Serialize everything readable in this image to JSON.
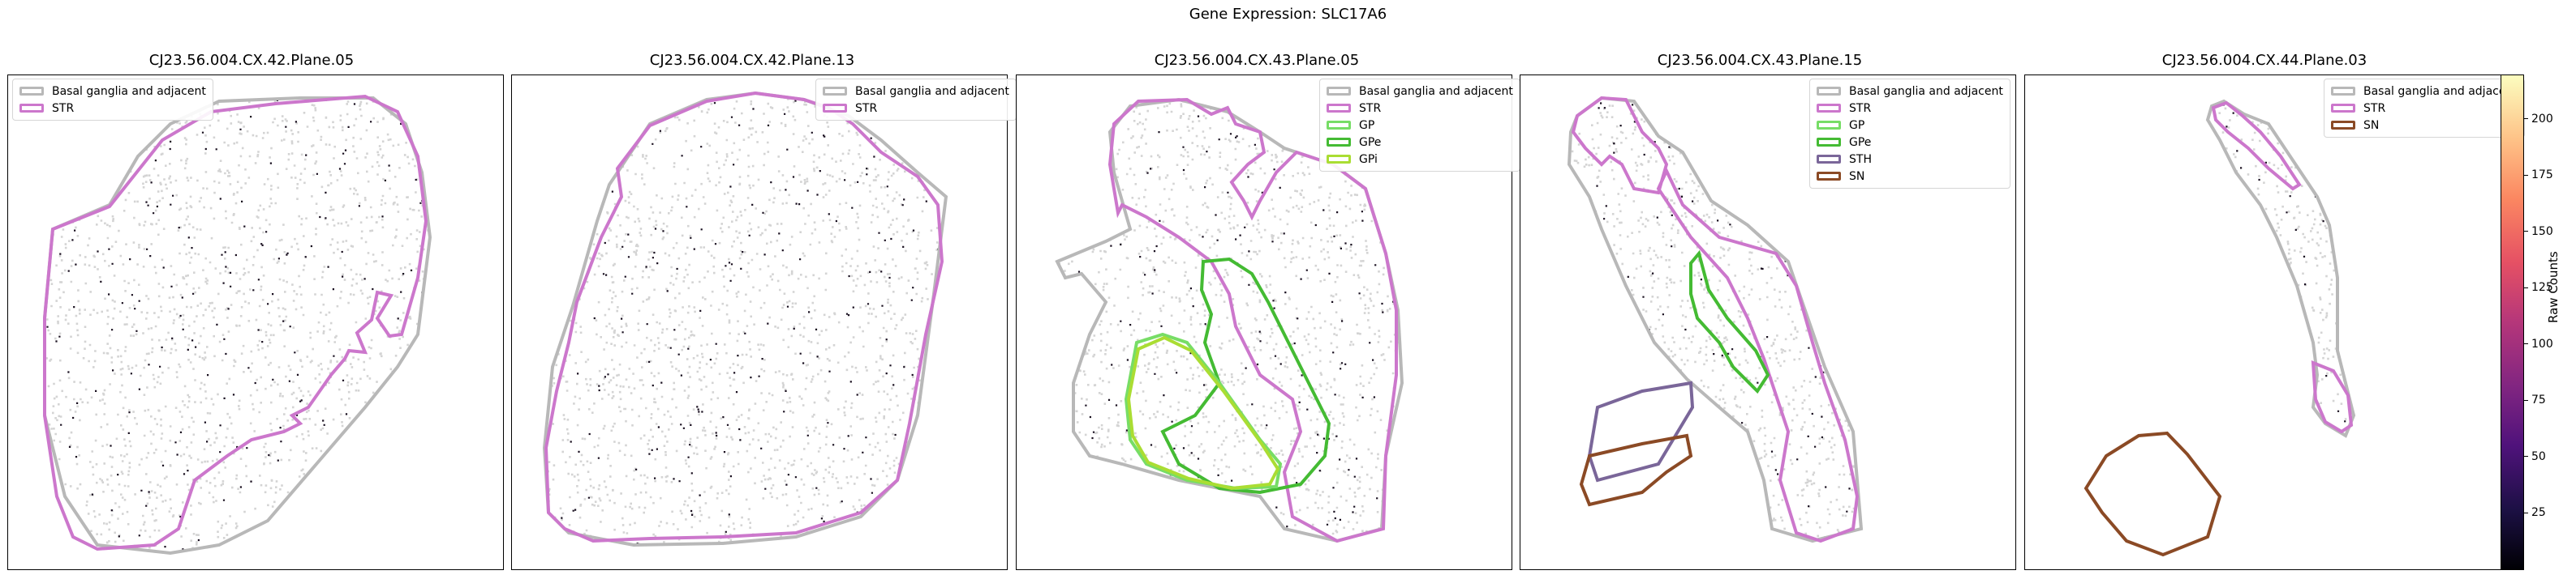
{
  "chart_data": {
    "type": "scatter",
    "title": "Gene Expression: SLC17A6",
    "colorbar": {
      "label": "Raw Counts",
      "ticks": [
        25,
        50,
        75,
        100,
        125,
        150,
        175,
        200
      ],
      "range": [
        0,
        220
      ],
      "colormap": "magma"
    },
    "region_colors": {
      "Basal ganglia and adjacent": "#b8b8b8",
      "STR": "#cc77cc",
      "GP": "#77dd66",
      "GPe": "#44bb33",
      "GPi": "#aadd33",
      "STH": "#7a6699",
      "SN": "#8b4a25"
    },
    "panels": [
      {
        "title": "CJ23.56.004.CX.42.Plane.05",
        "legend": [
          "Basal ganglia and adjacent",
          "STR"
        ],
        "legend_loc": "upper left"
      },
      {
        "title": "CJ23.56.004.CX.42.Plane.13",
        "legend": [
          "Basal ganglia and adjacent",
          "STR"
        ],
        "legend_loc": "upper right"
      },
      {
        "title": "CJ23.56.004.CX.43.Plane.05",
        "legend": [
          "Basal ganglia and adjacent",
          "STR",
          "GP",
          "GPe",
          "GPi"
        ],
        "legend_loc": "upper right"
      },
      {
        "title": "CJ23.56.004.CX.43.Plane.15",
        "legend": [
          "Basal ganglia and adjacent",
          "STR",
          "GP",
          "GPe",
          "STH",
          "SN"
        ],
        "legend_loc": "upper right"
      },
      {
        "title": "CJ23.56.004.CX.44.Plane.03",
        "legend": [
          "Basal ganglia and adjacent",
          "STR",
          "SN"
        ],
        "legend_loc": "upper right"
      }
    ]
  }
}
